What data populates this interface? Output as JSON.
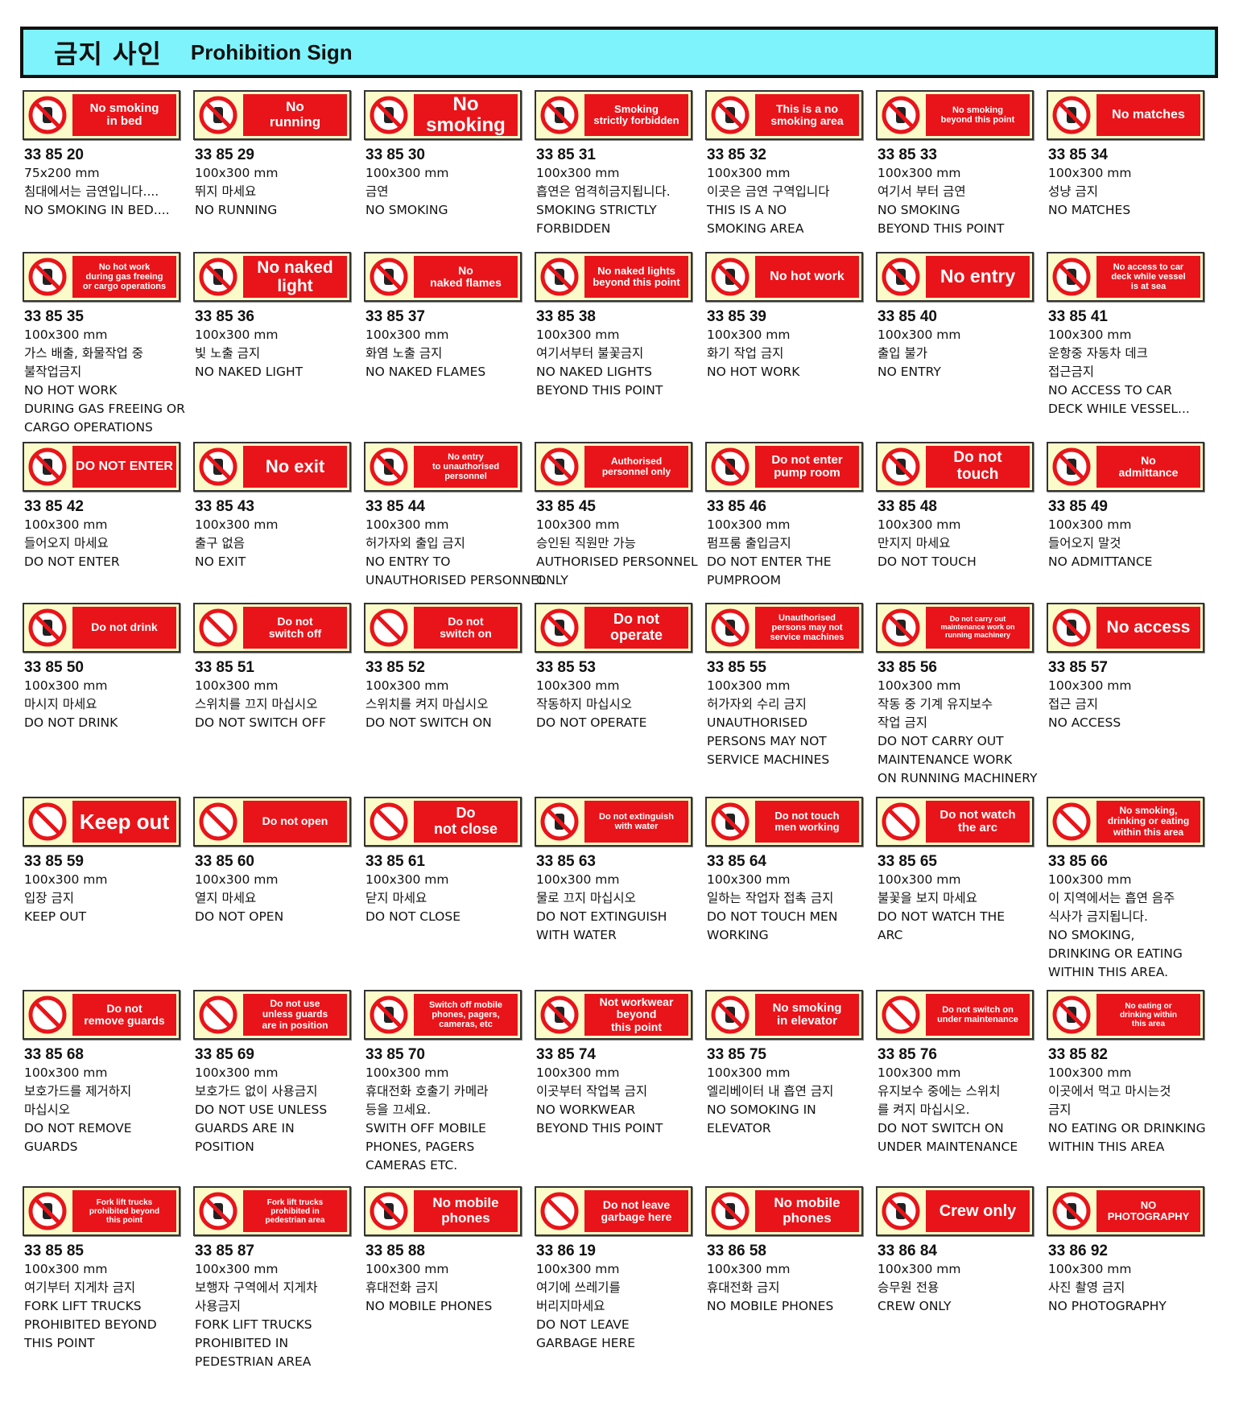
{
  "header": {
    "title_ko": "금지 사인",
    "title_en": "Prohibition Sign"
  },
  "colors": {
    "header_bg": "#7ff3fc",
    "sign_red": "#e8141a",
    "sign_bg": "#fbfbc9"
  },
  "rows": [
    [
      {
        "sign": "No smoking\nin bed",
        "fs": 15,
        "icon": "no-smoking-icon",
        "code": "33 85 20",
        "lines": [
          "75x200 mm",
          "침대에서는 금연입니다....",
          "NO SMOKING IN  BED...."
        ]
      },
      {
        "sign": "No\nrunning",
        "fs": 17,
        "icon": "no-running-icon",
        "code": "33 85 29",
        "lines": [
          "100x300 mm",
          "뛰지 마세요",
          "NO RUNNING"
        ]
      },
      {
        "sign": "No\nsmoking",
        "fs": 24,
        "icon": "no-smoking-icon",
        "code": "33 85 30",
        "lines": [
          "100x300 mm",
          "금연",
          "NO SMOKING"
        ]
      },
      {
        "sign": "Smoking\nstrictly forbidden",
        "fs": 13,
        "icon": "no-smoking-icon",
        "code": "33 85 31",
        "lines": [
          "100x300 mm",
          "흡연은 엄격히금지됩니다.",
          "SMOKING STRICTLY",
          "FORBIDDEN"
        ]
      },
      {
        "sign": "This is a no\nsmoking area",
        "fs": 14,
        "icon": "no-smoking-icon",
        "code": "33 85 32",
        "lines": [
          "100x300 mm",
          "이곳은 금연 구역입니다",
          "THIS IS A NO",
          "SMOKING AREA"
        ]
      },
      {
        "sign": "No smoking\nbeyond this point",
        "fs": 11,
        "icon": "no-smoking-icon",
        "code": "33 85 33",
        "lines": [
          "100x300 mm",
          "여기서 부터 금연",
          "NO SMOKING",
          "BEYOND THIS POINT"
        ]
      },
      {
        "sign": "No matches",
        "fs": 16,
        "icon": "no-matches-icon",
        "code": "33 85 34",
        "lines": [
          "100x300 mm",
          "성냥 금지",
          "NO MATCHES"
        ]
      }
    ],
    [
      {
        "sign": "No hot work\nduring gas freeing\nor cargo operations",
        "fs": 11,
        "icon": "no-hot-work-icon",
        "code": "33 85 35",
        "lines": [
          "100x300 mm",
          "가스 배출, 화물작업 중",
          "불작업금지",
          "NO HOT WORK",
          "DURING GAS FREEING OR",
          "CARGO OPERATIONS"
        ]
      },
      {
        "sign": "No naked\nlight",
        "fs": 21,
        "icon": "no-naked-light-icon",
        "code": "33 85 36",
        "lines": [
          "100x300 mm",
          "빛 노출 금지",
          "NO NAKED LIGHT"
        ]
      },
      {
        "sign": "No\nnaked flames",
        "fs": 14,
        "icon": "no-naked-flames-icon",
        "code": "33 85 37",
        "lines": [
          "100x300 mm",
          "화염 노출 금지",
          "NO NAKED FLAMES"
        ]
      },
      {
        "sign": "No naked lights\nbeyond this point",
        "fs": 13,
        "icon": "no-naked-flames-icon",
        "code": "33 85 38",
        "lines": [
          "100x300 mm",
          "여기서부터 불꽃금지",
          "NO NAKED  LIGHTS",
          "BEYOND THIS POINT"
        ]
      },
      {
        "sign": "No hot work",
        "fs": 16,
        "icon": "no-hot-work-icon",
        "code": "33 85 39",
        "lines": [
          "100x300 mm",
          "화기 작업 금지",
          "NO HOT WORK"
        ]
      },
      {
        "sign": "No entry",
        "fs": 23,
        "icon": "no-entry-hand-icon",
        "code": "33 85 40",
        "lines": [
          "100x300 mm",
          "출입 불가",
          "NO ENTRY"
        ]
      },
      {
        "sign": "No access to car\ndeck while vessel\nis at sea",
        "fs": 11,
        "icon": "no-entry-hand-icon",
        "code": "33 85 41",
        "lines": [
          "100x300 mm",
          "운항중 자동차 데크",
          "접근금지",
          "NO ACCESS TO CAR",
          "DECK WHILE VESSEL..."
        ]
      }
    ],
    [
      {
        "sign": "DO NOT ENTER",
        "fs": 16,
        "icon": "no-entry-hand-icon",
        "code": "33 85 42",
        "lines": [
          "100x300 mm",
          "들어오지 마세요",
          "DO NOT ENTER"
        ]
      },
      {
        "sign": "No exit",
        "fs": 22,
        "icon": "no-entry-hand-icon",
        "code": "33 85 43",
        "lines": [
          "100x300 mm",
          "출구 없음",
          "NO EXIT"
        ]
      },
      {
        "sign": "No entry\nto unauthorised\npersonnel",
        "fs": 11,
        "icon": "no-pedestrian-icon",
        "code": "33 85 44",
        "lines": [
          "100x300 mm",
          "허가자외 출입 금지",
          "NO ENTRY TO",
          "UNAUTHORISED PERSONNEL"
        ]
      },
      {
        "sign": "Authorised\npersonnel only",
        "fs": 12,
        "icon": "no-pedestrian-icon",
        "code": "33 85 45",
        "lines": [
          "100x300 mm",
          "승인된 직원만 가능",
          "AUTHORISED PERSONNEL",
          "ONLY"
        ]
      },
      {
        "sign": "Do not enter\npump room",
        "fs": 15,
        "icon": "no-entry-hand-icon",
        "code": "33 85 46",
        "lines": [
          "100x300 mm",
          "펌프룸 출입금지",
          "DO NOT ENTER THE",
          "PUMPROOM"
        ]
      },
      {
        "sign": "Do not\ntouch",
        "fs": 19,
        "icon": "no-touch-icon",
        "code": "33 85 48",
        "lines": [
          "100x300 mm",
          "만지지 마세요",
          "DO NOT TOUCH"
        ]
      },
      {
        "sign": "No\nadmittance",
        "fs": 14,
        "icon": "no-pedestrian-icon",
        "code": "33 85 49",
        "lines": [
          "100x300 mm",
          "들어오지 말것",
          "NO ADMITTANCE"
        ]
      }
    ],
    [
      {
        "sign": "Do not drink",
        "fs": 14,
        "icon": "no-drinking-water-icon",
        "code": "33 85 50",
        "lines": [
          "100x300 mm",
          "마시지 마세요",
          "DO NOT DRINK"
        ]
      },
      {
        "sign": "Do not\nswitch off",
        "fs": 14,
        "icon": "prohibition-icon",
        "code": "33 85 51",
        "lines": [
          "100x300 mm",
          "스위치를 끄지 마십시오",
          "DO NOT SWITCH OFF"
        ]
      },
      {
        "sign": "Do not\nswitch on",
        "fs": 14,
        "icon": "prohibition-icon",
        "code": "33 85 52",
        "lines": [
          "100x300 mm",
          "스위치를 켜지 마십시오",
          "DO NOT SWITCH ON"
        ]
      },
      {
        "sign": "Do not\noperate",
        "fs": 18,
        "icon": "no-operate-icon",
        "code": "33 85 53",
        "lines": [
          "100x300 mm",
          "작동하지 마십시오",
          "DO NOT OPERATE"
        ]
      },
      {
        "sign": "Unauthorised\npersons may not\nservice machines",
        "fs": 11,
        "icon": "no-servicing-icon",
        "code": "33 85 55",
        "lines": [
          "100x300 mm",
          "허가자외 수리 금지",
          "UNAUTHORISED",
          "PERSONS MAY NOT",
          "SERVICE MACHINES"
        ]
      },
      {
        "sign": "Do not carry out\nmaintenance work on\nrunning machinery",
        "fs": 9,
        "icon": "no-servicing-icon",
        "code": "33 85 56",
        "lines": [
          "100x300 mm",
          "작동 중 기계 유지보수",
          "작업 금지",
          "DO NOT CARRY OUT",
          "MAINTENANCE WORK",
          "ON RUNNING MACHINERY"
        ]
      },
      {
        "sign": "No access",
        "fs": 21,
        "icon": "no-pedestrian-icon",
        "code": "33 85 57",
        "lines": [
          "100x300 mm",
          "접근 금지",
          "NO ACCESS"
        ]
      }
    ],
    [
      {
        "sign": "Keep out",
        "fs": 26,
        "icon": "prohibition-icon",
        "code": "33 85 59",
        "lines": [
          "100x300 mm",
          "입장 금지",
          "KEEP OUT"
        ]
      },
      {
        "sign": "Do not open",
        "fs": 14,
        "icon": "prohibition-icon",
        "code": "33 85 60",
        "lines": [
          "100x300 mm",
          "열지 마세요",
          "DO NOT OPEN"
        ]
      },
      {
        "sign": "Do\nnot close",
        "fs": 18,
        "icon": "prohibition-icon",
        "code": "33 85 61",
        "lines": [
          "100x300 mm",
          "닫지 마세요",
          "DO NOT CLOSE"
        ]
      },
      {
        "sign": "Do not extinguish\nwith water",
        "fs": 11,
        "icon": "no-water-extinguish-icon",
        "code": "33 85 63",
        "lines": [
          "100x300 mm",
          "물로 끄지 마십시오",
          "DO NOT EXTINGUISH",
          "WITH WATER"
        ]
      },
      {
        "sign": "Do not touch\nmen working",
        "fs": 13,
        "icon": "no-touch-icon",
        "code": "33 85 64",
        "lines": [
          "100x300 mm",
          "일하는 작업자 접촉 금지",
          "DO NOT TOUCH MEN",
          "WORKING"
        ]
      },
      {
        "sign": "Do not watch\nthe arc",
        "fs": 15,
        "icon": "prohibition-icon",
        "code": "33 85 65",
        "lines": [
          "100x300 mm",
          "불꽃을 보지 마세요",
          "DO NOT WATCH THE",
          "ARC"
        ]
      },
      {
        "sign": "No smoking,\ndrinking or eating\nwithin this area",
        "fs": 12,
        "icon": "prohibition-icon",
        "code": "33 85 66",
        "lines": [
          "100x300 mm",
          "이 지역에서는 흡연 음주",
          "식사가 금지됩니다.",
          "NO SMOKING,",
          "DRINKING OR EATING",
          "WITHIN THIS AREA."
        ]
      }
    ],
    [
      {
        "sign": "Do not\nremove guards",
        "fs": 14,
        "icon": "prohibition-icon",
        "code": "33 85 68",
        "lines": [
          "100x300 mm",
          "보호가드를 제거하지",
          "마십시오",
          "DO NOT REMOVE",
          "GUARDS"
        ]
      },
      {
        "sign": "Do not use\nunless guards\nare in position",
        "fs": 12,
        "icon": "prohibition-icon",
        "code": "33 85 69",
        "lines": [
          "100x300 mm",
          "보호가드 없이 사용금지",
          "DO NOT USE UNLESS",
          "GUARDS ARE IN",
          "POSITION"
        ]
      },
      {
        "sign": "Switch off mobile\nphones, pagers,\ncameras, etc",
        "fs": 11,
        "icon": "no-mobile-phone-icon",
        "code": "33 85 70",
        "lines": [
          "100x300 mm",
          "휴대전화  호출기 카메라",
          "등을 끄세요.",
          "SWITH OFF MOBILE",
          "PHONES,  PAGERS",
          "CAMERAS ETC."
        ]
      },
      {
        "sign": "Not workwear\nbeyond\nthis point",
        "fs": 14,
        "icon": "no-boots-icon",
        "code": "33 85 74",
        "lines": [
          "100x300 mm",
          "이곳부터 작업복 금지",
          "NO WORKWEAR",
          "BEYOND THIS POINT"
        ]
      },
      {
        "sign": "No smoking\nin elevator",
        "fs": 15,
        "icon": "no-smoking-icon",
        "code": "33 85 75",
        "lines": [
          "100x300 mm",
          "엘리베이터 내 흡연 금지",
          "NO SOMOKING IN",
          "ELEVATOR"
        ]
      },
      {
        "sign": "Do not switch on\nunder maintenance",
        "fs": 11,
        "icon": "prohibition-icon",
        "code": "33 85 76",
        "lines": [
          "100x300 mm",
          "유지보수 중에는 스위치",
          "를 켜지 마십시오.",
          "DO NOT SWITCH ON",
          "UNDER MAINTENANCE"
        ]
      },
      {
        "sign": "No eating or\ndrinking within\nthis area",
        "fs": 10,
        "icon": "no-eating-drinking-icon",
        "code": "33 85 82",
        "lines": [
          "100x300 mm",
          "이곳에서 먹고 마시는것",
          "금지",
          "NO EATING OR DRINKING",
          "WITHIN THIS AREA"
        ]
      }
    ],
    [
      {
        "sign": "Fork lift trucks\nprohibited beyond\nthis point",
        "fs": 10,
        "icon": "no-forklift-icon",
        "code": "33 85 85",
        "lines": [
          "100x300 mm",
          "여기부터 지게차 금지",
          "FORK LIFT TRUCKS",
          "PROHIBITED BEYOND",
          "THIS POINT"
        ]
      },
      {
        "sign": "Fork lift trucks\nprohibited in\npedestrian area",
        "fs": 10,
        "icon": "no-forklift-icon",
        "code": "33 85 87",
        "lines": [
          "100x300 mm",
          "보행자 구역에서 지게차",
          "사용금지",
          "FORK LIFT TRUCKS",
          "PROHIBITED IN",
          "PEDESTRIAN AREA"
        ]
      },
      {
        "sign": "No mobile\nphones",
        "fs": 17,
        "icon": "no-mobile-phone-icon",
        "code": "33 85 88",
        "lines": [
          "100x300 mm",
          "휴대전화 금지",
          "NO MOBILE PHONES"
        ]
      },
      {
        "sign": "Do not leave\ngarbage here",
        "fs": 14,
        "icon": "prohibition-icon",
        "code": "33 86 19",
        "lines": [
          "100x300 mm",
          "여기에 쓰레기를",
          "버리지마세요",
          "DO NOT LEAVE",
          "GARBAGE HERE"
        ]
      },
      {
        "sign": "No mobile\nphones",
        "fs": 17,
        "icon": "no-mobile-phone-icon",
        "code": "33 86 58",
        "lines": [
          "100x300 mm",
          "휴대전화 금지",
          "NO MOBILE PHONES"
        ]
      },
      {
        "sign": "Crew only",
        "fs": 20,
        "icon": "no-pedestrian-icon",
        "code": "33 86 84",
        "lines": [
          "100x300 mm",
          "승무원 전용",
          "CREW ONLY"
        ]
      },
      {
        "sign": "NO\nPHOTOGRAPHY",
        "fs": 13,
        "icon": "no-camera-icon",
        "code": "33 86 92",
        "lines": [
          "100x300 mm",
          "사진 촬영 금지",
          "NO PHOTOGRAPHY"
        ]
      }
    ]
  ]
}
